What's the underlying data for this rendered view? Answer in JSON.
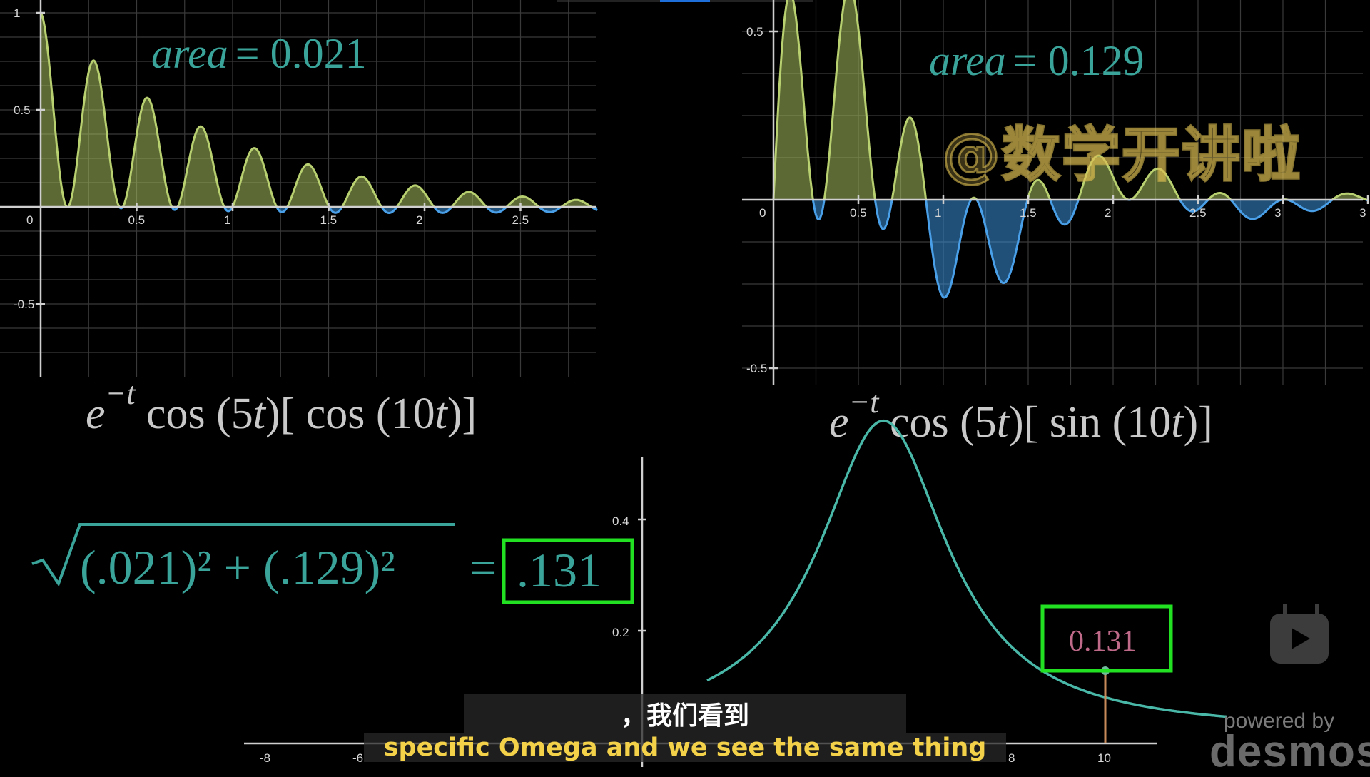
{
  "graph1": {
    "area_label": "area",
    "area_eq": "= 0.021",
    "formula": {
      "base": "e",
      "exp": "−t",
      "f1": " cos (5",
      "var": "t",
      "f2": ")[ cos (10",
      "var2": "t",
      "f3": ")]"
    },
    "x_ticks": [
      "0.5",
      "1",
      "1.5",
      "2",
      "2.5"
    ],
    "y_ticks": [
      "1",
      "0.5",
      "-0.5"
    ],
    "origin_label": "0"
  },
  "graph2": {
    "area_label": "area",
    "area_eq": "= 0.129",
    "formula": {
      "base": "e",
      "exp": "−t",
      "f1": " cos (5",
      "var": "t",
      "f2": ")[ sin (10",
      "var2": "t",
      "f3": ")]"
    },
    "x_ticks": [
      "0.5",
      "1",
      "1.5",
      "2",
      "2.5",
      "3",
      "3"
    ],
    "y_ticks": [
      "0.5",
      "-0.5"
    ],
    "origin_label": "0"
  },
  "magnitude": {
    "sqrt_expr": "(.021)² + (.129)²",
    "equals": "=",
    "result": ".131"
  },
  "graph3": {
    "x_ticks": [
      "-8",
      "-6",
      "8",
      "10"
    ],
    "y_ticks": [
      "0.4",
      "0.2"
    ],
    "value_box": "0.131"
  },
  "watermark": "@数学开讲啦",
  "subtitle_cn": "，我们看到",
  "subtitle_en": "specific Omega and we see the same thing",
  "branding": {
    "powered": "powered by",
    "name": "desmos"
  },
  "colors": {
    "positive": "#a8c060",
    "negative": "#3a8fd8",
    "teal": "#3aa49a",
    "green_box": "#22e022",
    "pink": "#c06a8a"
  },
  "icons": [
    "play-logo-icon"
  ]
}
